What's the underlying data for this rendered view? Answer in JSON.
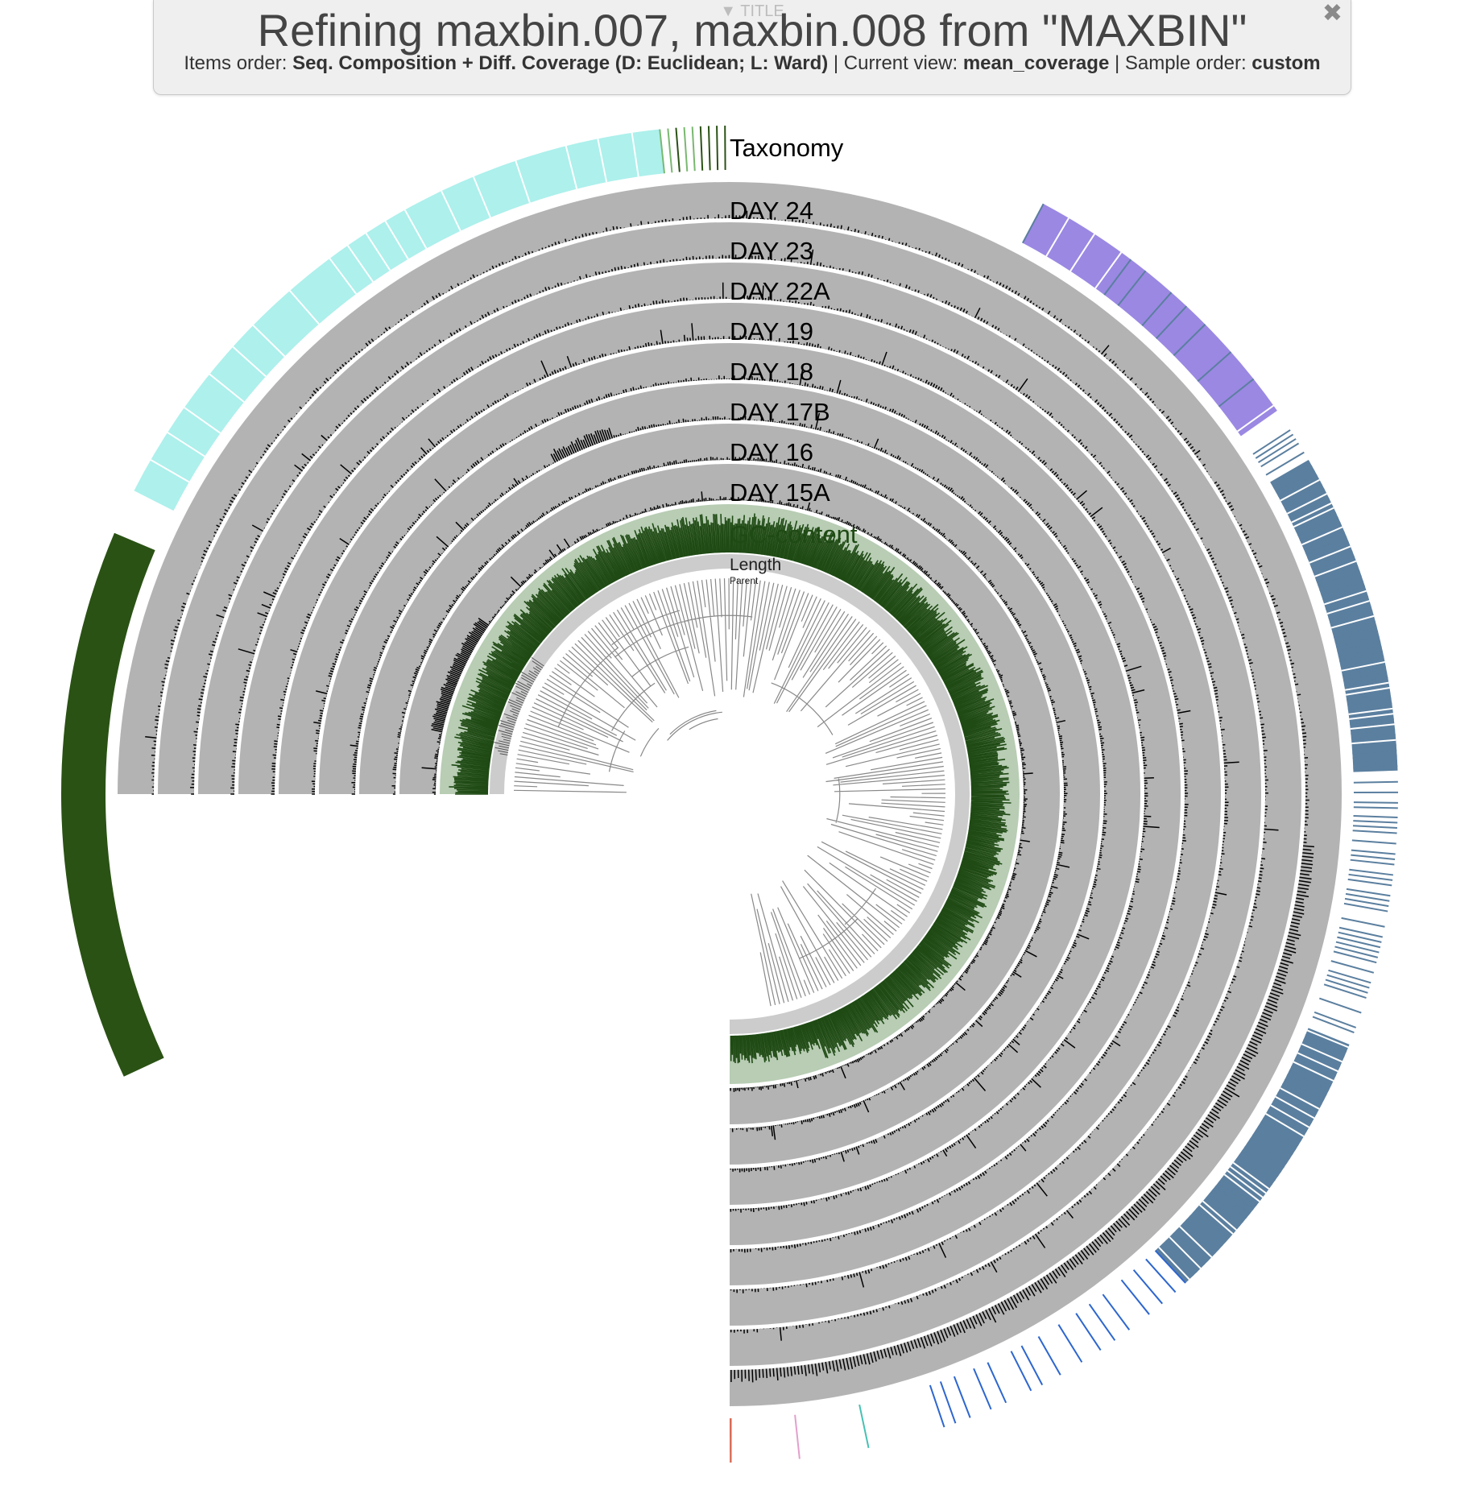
{
  "title_panel": {
    "toggle_label": "▼ TITLE",
    "heading": "Refining maxbin.007, maxbin.008 from \"MAXBIN\"",
    "items_order_label": "Items order:",
    "items_order_value": "Seq. Composition + Diff. Coverage (D: Euclidean; L: Ward)",
    "current_view_label": "Current view:",
    "current_view_value": "mean_coverage",
    "sample_order_label": "Sample order:",
    "sample_order_value": "custom",
    "separator": "|"
  },
  "close_icon": "close-icon",
  "layers": {
    "taxonomy": "Taxonomy",
    "samples": [
      "DAY 24",
      "DAY 23",
      "DAY 22A",
      "DAY 19",
      "DAY 18",
      "DAY 17B",
      "DAY 16",
      "DAY 15A"
    ],
    "gc_content": "GC-content",
    "length": "Length",
    "parent": "Parent"
  },
  "colors": {
    "layer_bg": "#b3b3b3",
    "bar": "#000000",
    "gc_bar": "#1f4a14",
    "gc_bg": "#b8cdb4",
    "length_bg": "#cccccc",
    "tree": "#888888",
    "taxa": [
      "#adf0ec",
      "#2a5214",
      "#9b88e3",
      "#5b7f9f",
      "#2d66cf"
    ]
  }
}
